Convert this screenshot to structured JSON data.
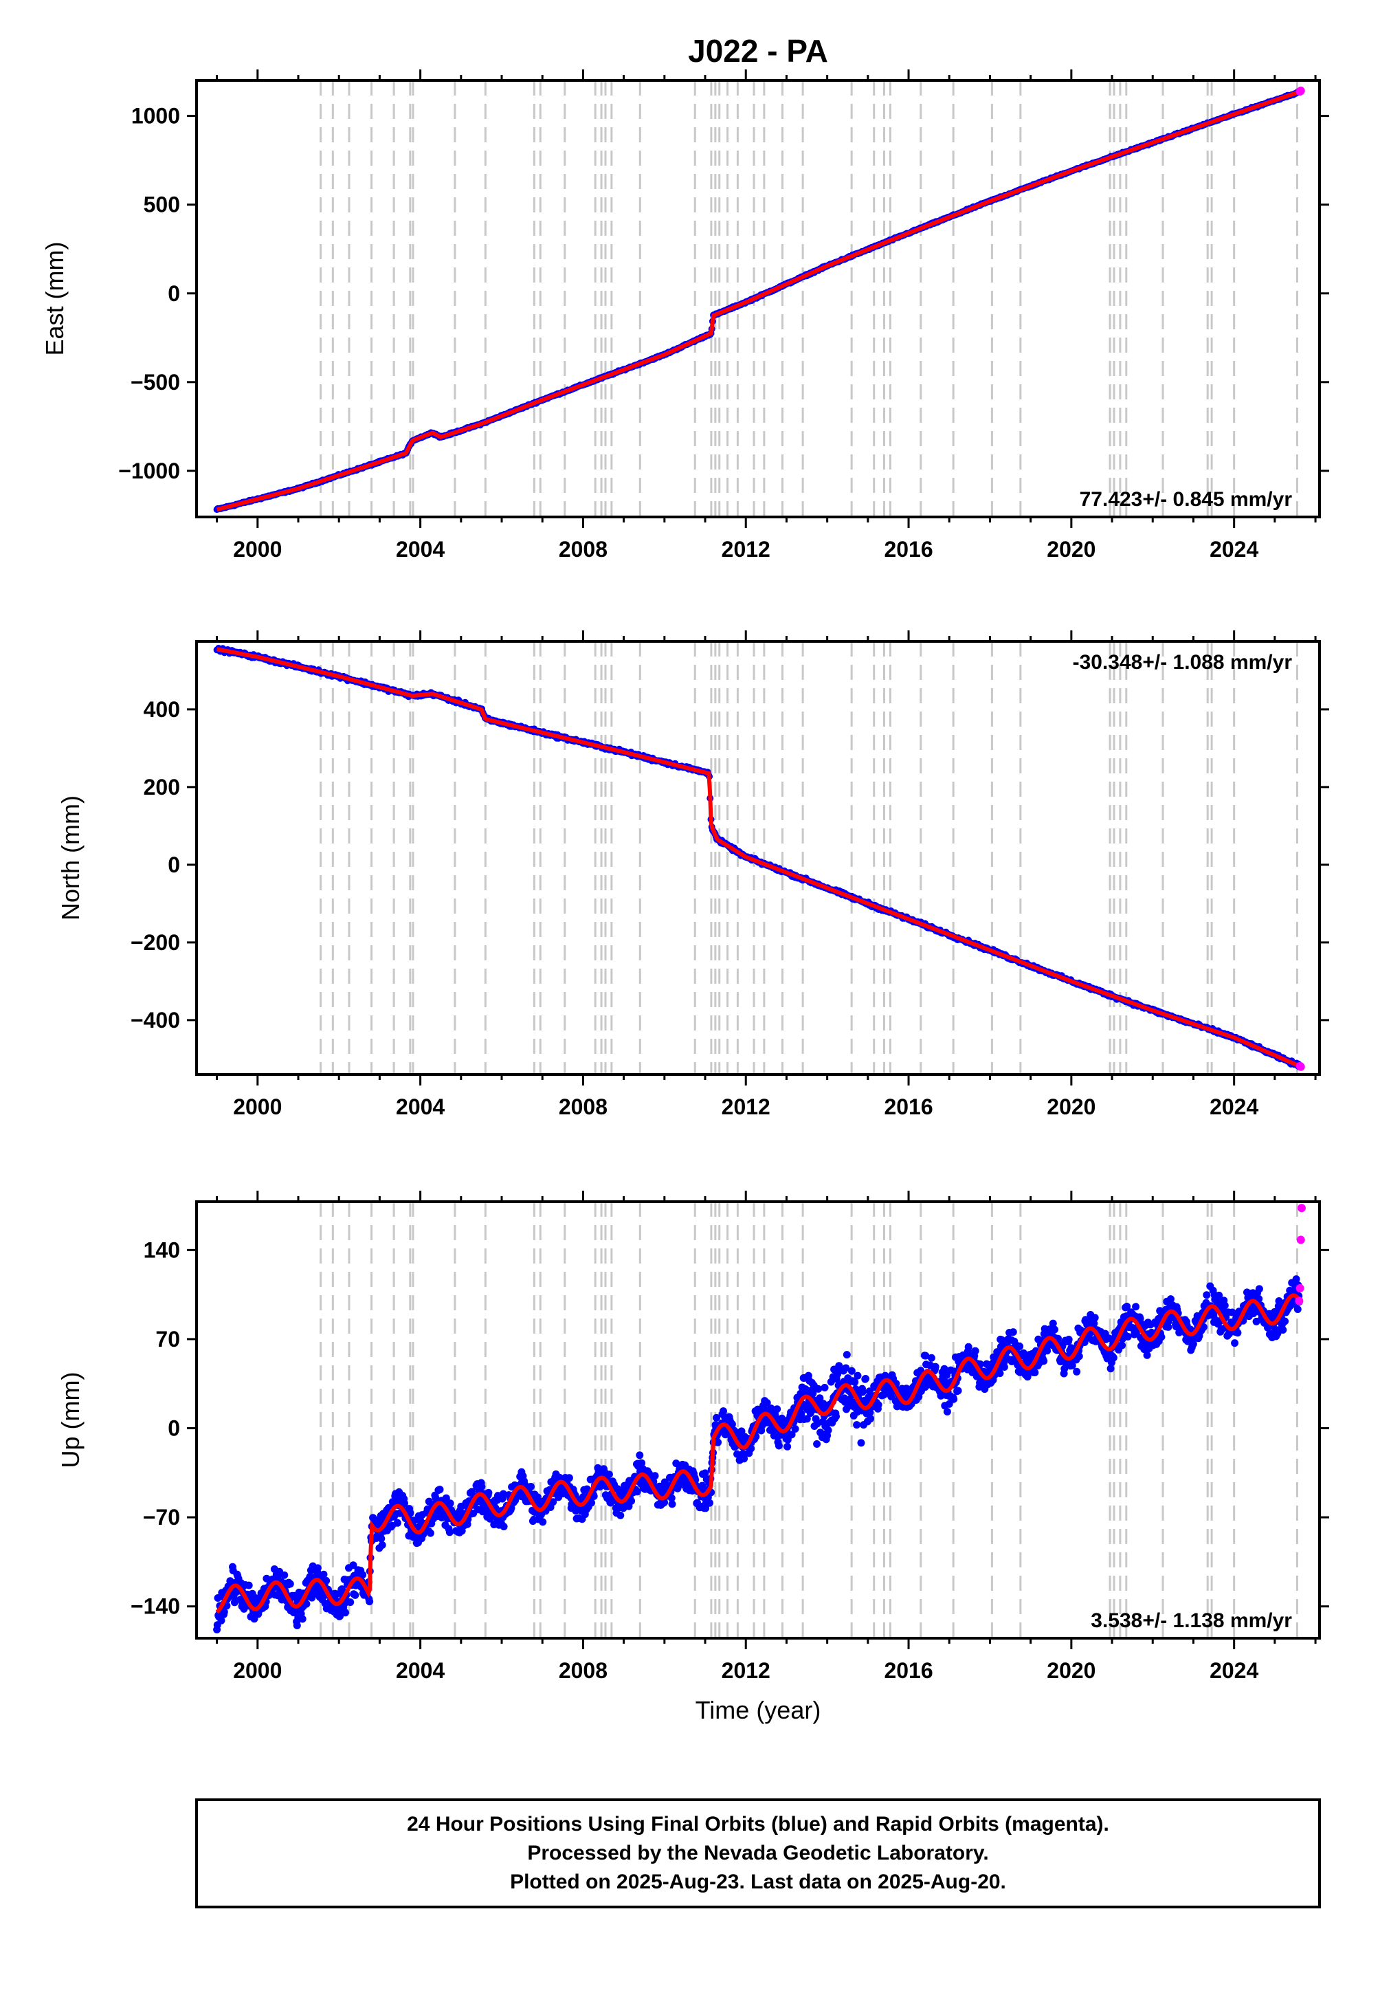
{
  "title": "J022 - PA",
  "x_axis_title": "Time (year)",
  "footer": {
    "line1": "24 Hour Positions Using Final Orbits (blue) and Rapid Orbits (magenta).",
    "line2": "Processed by the Nevada Geodetic Laboratory.",
    "line3": "Plotted on 2025-Aug-23. Last data on 2025-Aug-20."
  },
  "colors": {
    "final_orbits": "#0000ff",
    "rapid_orbits": "#ff00ff",
    "model": "#ff0000",
    "event_lines": "#c8c8c8",
    "frame": "#000000"
  },
  "event_lines_decimal_year": [
    2001.55,
    2001.85,
    2002.25,
    2002.8,
    2003.35,
    2003.75,
    2003.82,
    2004.85,
    2005.6,
    2006.8,
    2006.95,
    2007.55,
    2008.3,
    2008.45,
    2008.55,
    2008.7,
    2009.4,
    2010.75,
    2011.15,
    2011.25,
    2011.35,
    2011.55,
    2011.8,
    2012.2,
    2012.45,
    2012.9,
    2013.4,
    2014.6,
    2015.15,
    2015.4,
    2015.55,
    2016.3,
    2017.1,
    2018.05,
    2018.75,
    2020.95,
    2021.05,
    2021.2,
    2021.35,
    2022.25,
    2023.35,
    2023.45,
    2024.0,
    2025.55
  ],
  "chart_data": [
    {
      "type": "scatter",
      "component": "East",
      "ylabel": "East (mm)",
      "xlim": [
        1998.5,
        2026.1
      ],
      "ylim": [
        -1260,
        1200
      ],
      "xticks": [
        "2000",
        "2004",
        "2008",
        "2012",
        "2016",
        "2020",
        "2024"
      ],
      "yticks": [
        "−1000",
        "−500",
        "0",
        "500",
        "1000"
      ],
      "ytick_values": [
        -1000,
        -500,
        0,
        500,
        1000
      ],
      "rate_label": "77.423+/- 0.845 mm/yr",
      "rate_label_position": "bottom-right",
      "series": [
        {
          "name": "Final Orbits",
          "color": "#0000ff",
          "x": [
            1999.0,
            2001.0,
            2003.0,
            2003.65,
            2003.8,
            2004.3,
            2004.5,
            2005.5,
            2007.0,
            2009.0,
            2010.0,
            2011.15,
            2011.2,
            2012.0,
            2014.0,
            2016.0,
            2018.0,
            2020.0,
            2022.0,
            2024.0,
            2025.6
          ],
          "values": [
            -1218,
            -1100,
            -950,
            -900,
            -830,
            -785,
            -810,
            -735,
            -600,
            -430,
            -345,
            -225,
            -125,
            -50,
            155,
            340,
            520,
            690,
            850,
            1010,
            1135
          ]
        },
        {
          "name": "Rapid Orbits",
          "color": "#ff00ff",
          "x": [
            2025.62,
            2025.64
          ],
          "values": [
            1138,
            1142
          ]
        }
      ]
    },
    {
      "type": "scatter",
      "component": "North",
      "ylabel": "North (mm)",
      "xlim": [
        1998.5,
        2026.1
      ],
      "ylim": [
        -540,
        575
      ],
      "xticks": [
        "2000",
        "2004",
        "2008",
        "2012",
        "2016",
        "2020",
        "2024"
      ],
      "yticks": [
        "−400",
        "−200",
        "0",
        "200",
        "400"
      ],
      "ytick_values": [
        -400,
        -200,
        0,
        200,
        400
      ],
      "rate_label": "-30.348+/- 1.088 mm/yr",
      "rate_label_position": "top-right",
      "series": [
        {
          "name": "Final Orbits",
          "color": "#0000ff",
          "x": [
            1999.0,
            2000.0,
            2002.0,
            2003.8,
            2004.3,
            2005.5,
            2005.6,
            2007.0,
            2009.0,
            2011.1,
            2011.15,
            2011.3,
            2012.0,
            2014.0,
            2016.0,
            2018.0,
            2020.0,
            2022.0,
            2024.0,
            2025.6
          ],
          "values": [
            555,
            535,
            485,
            435,
            440,
            400,
            375,
            340,
            290,
            235,
            100,
            65,
            20,
            -60,
            -140,
            -220,
            -300,
            -375,
            -445,
            -518
          ]
        },
        {
          "name": "Rapid Orbits",
          "color": "#ff00ff",
          "x": [
            2025.62,
            2025.64
          ],
          "values": [
            -518,
            -520
          ]
        }
      ]
    },
    {
      "type": "scatter",
      "component": "Up",
      "ylabel": "Up (mm)",
      "xlim": [
        1998.5,
        2026.1
      ],
      "ylim": [
        -165,
        178
      ],
      "xticks": [
        "2000",
        "2004",
        "2008",
        "2012",
        "2016",
        "2020",
        "2024"
      ],
      "yticks": [
        "−140",
        "−70",
        "0",
        "70",
        "140"
      ],
      "ytick_values": [
        -140,
        -70,
        0,
        70,
        140
      ],
      "rate_label": "3.538+/- 1.138 mm/yr",
      "rate_label_position": "bottom-right",
      "series": [
        {
          "name": "Final Orbits",
          "color": "#0000ff",
          "x": [
            1999.0,
            2000.0,
            2001.0,
            2002.0,
            2002.75,
            2002.8,
            2004.0,
            2006.0,
            2008.0,
            2010.0,
            2011.15,
            2011.2,
            2012.0,
            2014.0,
            2016.0,
            2018.0,
            2020.0,
            2022.0,
            2024.0,
            2025.6
          ],
          "values": [
            -135,
            -132,
            -130,
            -128,
            -128,
            -70,
            -72,
            -58,
            -50,
            -45,
            -42,
            -8,
            -5,
            22,
            30,
            50,
            65,
            80,
            88,
            95
          ]
        },
        {
          "name": "Rapid Orbits",
          "color": "#ff00ff",
          "x": [
            2025.6,
            2025.62,
            2025.64,
            2025.66
          ],
          "values": [
            100,
            110,
            148,
            173
          ]
        }
      ]
    }
  ]
}
